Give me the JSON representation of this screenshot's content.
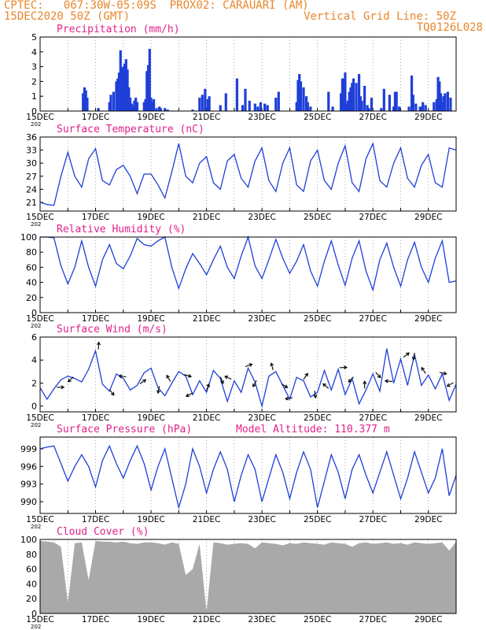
{
  "header": {
    "line1": "CPTEC:   067:30W-05:09S  PROX02: CARAUARI (AM)",
    "line2": "15DEC2020 50Z (GMT)",
    "grid_note": "Vertical Grid Line: 50Z",
    "model": "TQ0126L028"
  },
  "colors": {
    "header": "#e8862a",
    "title": "#e0218a",
    "line": "#1f3fd8",
    "bar": "#1f3fd8",
    "cloud": "#a9a9a9",
    "grid": "#888888",
    "arrow": "#000000"
  },
  "x_dates": [
    "15DEC",
    "17DEC",
    "19DEC",
    "21DEC",
    "23DEC",
    "25DEC",
    "27DEC",
    "29DEC"
  ],
  "x_sublabel": "202",
  "chart_data": [
    {
      "id": "precip",
      "type": "bar",
      "title": "Precipitation (mm/h)",
      "ylim": [
        0,
        5
      ],
      "yticks": [
        0,
        1,
        2,
        3,
        4,
        5
      ],
      "x": [
        1.55,
        1.6,
        1.65,
        1.7,
        2.1,
        2.5,
        2.55,
        2.65,
        2.75,
        2.8,
        2.85,
        2.9,
        2.95,
        3.0,
        3.05,
        3.1,
        3.15,
        3.2,
        3.25,
        3.3,
        3.35,
        3.4,
        3.45,
        3.5,
        3.75,
        3.8,
        3.85,
        3.9,
        3.95,
        4.0,
        4.05,
        4.1,
        4.2,
        4.3,
        4.35,
        4.5,
        4.6,
        5.5,
        5.75,
        5.85,
        5.95,
        6.05,
        6.1,
        6.5,
        6.7,
        7.1,
        7.3,
        7.4,
        7.55,
        7.75,
        7.85,
        7.95,
        8.1,
        8.2,
        8.5,
        8.6,
        9.25,
        9.3,
        9.35,
        9.4,
        9.5,
        9.6,
        9.65,
        9.75,
        10.4,
        10.55,
        10.85,
        10.9,
        10.95,
        11.0,
        11.05,
        11.1,
        11.15,
        11.2,
        11.25,
        11.3,
        11.4,
        11.5,
        11.55,
        11.6,
        11.7,
        11.8,
        11.85,
        11.95,
        12.3,
        12.4,
        12.6,
        12.75,
        12.8,
        12.85,
        12.95,
        13.3,
        13.4,
        13.45,
        13.55,
        13.7,
        13.75,
        13.8,
        13.9,
        14.2,
        14.3,
        14.35,
        14.4,
        14.45,
        14.5,
        14.55,
        14.6,
        14.7,
        14.8
      ],
      "values": [
        1.2,
        1.6,
        1.4,
        0.9,
        0.2,
        0.6,
        1.1,
        1.3,
        2.0,
        2.2,
        2.6,
        4.1,
        2.9,
        3.0,
        3.2,
        3.5,
        2.8,
        1.6,
        0.9,
        0.5,
        0.3,
        0.7,
        0.9,
        0.6,
        0.6,
        0.8,
        2.7,
        3.1,
        4.2,
        0.9,
        0.6,
        0.8,
        0.2,
        0.3,
        0.2,
        0.2,
        0.1,
        0.1,
        0.9,
        1.1,
        1.5,
        0.8,
        1.0,
        0.4,
        1.2,
        2.2,
        0.4,
        1.5,
        0.7,
        0.5,
        0.3,
        0.6,
        0.5,
        0.4,
        0.9,
        1.3,
        0.6,
        2.1,
        2.5,
        2.0,
        1.6,
        1.0,
        0.6,
        0.3,
        1.3,
        0.3,
        1.2,
        2.2,
        2.2,
        2.6,
        0.5,
        0.7,
        1.3,
        1.6,
        1.9,
        2.2,
        1.9,
        2.5,
        1.0,
        0.7,
        1.7,
        0.4,
        0.2,
        0.9,
        0.2,
        1.5,
        1.1,
        0.3,
        1.3,
        1.3,
        0.3,
        0.3,
        2.4,
        1.1,
        0.5,
        0.3,
        0.3,
        0.6,
        0.4,
        0.6,
        0.8,
        2.3,
        2.0,
        1.2,
        0.6,
        1.0,
        1.2,
        1.3,
        0.9
      ]
    },
    {
      "id": "temp",
      "type": "line",
      "title": "Surface Temperature (nC)",
      "ylim": [
        19,
        36
      ],
      "yticks": [
        21,
        24,
        27,
        30,
        33,
        36
      ],
      "x": [
        0,
        0.25,
        0.5,
        0.75,
        1.0,
        1.25,
        1.5,
        1.75,
        2.0,
        2.25,
        2.5,
        2.75,
        3.0,
        3.25,
        3.5,
        3.75,
        4.0,
        4.25,
        4.5,
        4.75,
        5.0,
        5.25,
        5.5,
        5.75,
        6.0,
        6.25,
        6.5,
        6.75,
        7.0,
        7.25,
        7.5,
        7.75,
        8.0,
        8.25,
        8.5,
        8.75,
        9.0,
        9.25,
        9.5,
        9.75,
        10.0,
        10.25,
        10.5,
        10.75,
        11.0,
        11.25,
        11.5,
        11.75,
        12.0,
        12.25,
        12.5,
        12.75,
        13.0,
        13.25,
        13.5,
        13.75,
        14.0,
        14.25,
        14.5,
        14.75,
        15.0
      ],
      "values": [
        21.0,
        20.5,
        20.3,
        27.0,
        32.5,
        27.0,
        24.5,
        31.0,
        33.3,
        26.0,
        25.0,
        28.5,
        29.5,
        27.0,
        23.0,
        27.5,
        27.5,
        25.0,
        22.0,
        28.0,
        34.5,
        27.0,
        25.5,
        30.0,
        31.5,
        25.5,
        24.0,
        30.5,
        32.0,
        26.5,
        24.5,
        30.5,
        33.5,
        26.0,
        23.5,
        30.0,
        33.5,
        25.0,
        23.5,
        30.5,
        33.0,
        26.0,
        24.0,
        30.0,
        34.0,
        25.5,
        23.5,
        31.0,
        34.5,
        26.0,
        24.5,
        30.0,
        33.5,
        26.5,
        24.5,
        29.5,
        32.0,
        25.5,
        24.5,
        33.5,
        33.0
      ]
    },
    {
      "id": "rh",
      "type": "line",
      "title": "Relative Humidity (%)",
      "ylim": [
        0,
        100
      ],
      "yticks": [
        0,
        20,
        40,
        60,
        80,
        100
      ],
      "x": [
        0,
        0.25,
        0.5,
        0.75,
        1.0,
        1.25,
        1.5,
        1.75,
        2.0,
        2.25,
        2.5,
        2.75,
        3.0,
        3.25,
        3.5,
        3.75,
        4.0,
        4.25,
        4.5,
        4.75,
        5.0,
        5.25,
        5.5,
        5.75,
        6.0,
        6.25,
        6.5,
        6.75,
        7.0,
        7.25,
        7.5,
        7.75,
        8.0,
        8.25,
        8.5,
        8.75,
        9.0,
        9.25,
        9.5,
        9.75,
        10.0,
        10.25,
        10.5,
        10.75,
        11.0,
        11.25,
        11.5,
        11.75,
        12.0,
        12.25,
        12.5,
        12.75,
        13.0,
        13.25,
        13.5,
        13.75,
        14.0,
        14.25,
        14.5,
        14.75,
        15.0
      ],
      "values": [
        100,
        100,
        99,
        62,
        38,
        60,
        95,
        60,
        35,
        70,
        90,
        65,
        58,
        75,
        98,
        90,
        88,
        95,
        100,
        60,
        32,
        58,
        78,
        65,
        50,
        70,
        88,
        60,
        45,
        75,
        100,
        62,
        45,
        70,
        97,
        72,
        52,
        68,
        90,
        55,
        35,
        68,
        95,
        63,
        36,
        72,
        95,
        55,
        30,
        70,
        92,
        60,
        35,
        70,
        93,
        60,
        40,
        72,
        95,
        40,
        42
      ]
    },
    {
      "id": "wind",
      "type": "line",
      "title": "Surface Wind (m/s)",
      "ylim": [
        -0.5,
        6
      ],
      "yticks": [
        0,
        2,
        4,
        6
      ],
      "x": [
        0,
        0.25,
        0.5,
        0.75,
        1.0,
        1.25,
        1.5,
        1.75,
        2.0,
        2.25,
        2.5,
        2.75,
        3.0,
        3.25,
        3.5,
        3.75,
        4.0,
        4.25,
        4.5,
        4.75,
        5.0,
        5.25,
        5.5,
        5.75,
        6.0,
        6.25,
        6.5,
        6.75,
        7.0,
        7.25,
        7.5,
        7.75,
        8.0,
        8.25,
        8.5,
        8.75,
        9.0,
        9.25,
        9.5,
        9.75,
        10.0,
        10.25,
        10.5,
        10.75,
        11.0,
        11.25,
        11.5,
        11.75,
        12.0,
        12.25,
        12.5,
        12.75,
        13.0,
        13.25,
        13.5,
        13.75,
        14.0,
        14.25,
        14.5,
        14.75,
        15.0
      ],
      "values": [
        1.6,
        0.6,
        1.5,
        2.3,
        2.6,
        2.4,
        2.1,
        3.2,
        4.8,
        1.9,
        1.3,
        2.8,
        2.4,
        1.4,
        1.8,
        2.9,
        3.3,
        1.6,
        0.9,
        2.0,
        3.0,
        2.6,
        1.0,
        2.2,
        1.2,
        3.1,
        2.4,
        0.4,
        2.2,
        1.2,
        3.3,
        2.1,
        0.0,
        2.6,
        3.0,
        1.8,
        0.6,
        2.5,
        2.2,
        0.8,
        1.2,
        3.1,
        1.4,
        3.2,
        1.0,
        2.4,
        0.2,
        1.4,
        2.8,
        1.3,
        5.0,
        2.0,
        4.1,
        1.8,
        4.5,
        1.8,
        2.7,
        1.5,
        2.8,
        0.5,
        1.9
      ],
      "arrow_days": [
        0.6,
        1.2,
        2.1,
        2.5,
        3.1,
        3.6,
        4.3,
        4.7,
        5.2,
        5.5,
        6.0,
        6.5,
        6.9,
        7.4,
        7.8,
        8.4,
        8.7,
        9.1,
        9.5,
        9.9,
        10.4,
        10.8,
        11.3,
        11.7,
        12.1,
        12.7,
        13.1,
        13.5,
        13.9,
        14.4,
        14.9
      ]
    },
    {
      "id": "press",
      "type": "line",
      "title": "Surface Pressure (hPa)",
      "annotation": "Model Altitude: 110.377  m",
      "ylim": [
        988,
        1001
      ],
      "yticks": [
        990,
        993,
        996,
        999
      ],
      "x": [
        0,
        0.25,
        0.5,
        0.75,
        1.0,
        1.25,
        1.5,
        1.75,
        2.0,
        2.25,
        2.5,
        2.75,
        3.0,
        3.25,
        3.5,
        3.75,
        4.0,
        4.25,
        4.5,
        4.75,
        5.0,
        5.25,
        5.5,
        5.75,
        6.0,
        6.25,
        6.5,
        6.75,
        7.0,
        7.25,
        7.5,
        7.75,
        8.0,
        8.25,
        8.5,
        8.75,
        9.0,
        9.25,
        9.5,
        9.75,
        10.0,
        10.25,
        10.5,
        10.75,
        11.0,
        11.25,
        11.5,
        11.75,
        12.0,
        12.25,
        12.5,
        12.75,
        13.0,
        13.25,
        13.5,
        13.75,
        14.0,
        14.25,
        14.5,
        14.75,
        15.0
      ],
      "values": [
        999.0,
        999.3,
        999.5,
        996.5,
        993.5,
        996.0,
        998.0,
        996.0,
        992.5,
        997.0,
        999.5,
        996.5,
        994.0,
        997.0,
        999.5,
        996.5,
        992.0,
        996.0,
        999.0,
        994.0,
        989.0,
        993.0,
        999.0,
        996.0,
        991.5,
        995.5,
        998.5,
        995.5,
        990.0,
        994.5,
        998.0,
        995.5,
        990.0,
        994.0,
        998.0,
        995.0,
        990.5,
        995.0,
        998.5,
        995.5,
        989.0,
        993.5,
        998.0,
        995.0,
        990.5,
        995.5,
        998.0,
        994.5,
        991.5,
        995.0,
        998.5,
        994.5,
        990.5,
        994.0,
        998.5,
        995.0,
        991.5,
        994.0,
        999.0,
        991.0,
        994.5
      ]
    },
    {
      "id": "cloud",
      "type": "area",
      "title": "Cloud Cover (%)",
      "ylim": [
        0,
        100
      ],
      "yticks": [
        0,
        20,
        40,
        60,
        80,
        100
      ],
      "x": [
        0,
        0.25,
        0.5,
        0.75,
        1.0,
        1.25,
        1.5,
        1.75,
        2.0,
        2.25,
        2.5,
        2.75,
        3.0,
        3.25,
        3.5,
        3.75,
        4.0,
        4.25,
        4.5,
        4.75,
        5.0,
        5.25,
        5.5,
        5.75,
        6.0,
        6.25,
        6.5,
        6.75,
        7.0,
        7.25,
        7.5,
        7.75,
        8.0,
        8.25,
        8.5,
        8.75,
        9.0,
        9.25,
        9.5,
        9.75,
        10.0,
        10.25,
        10.5,
        10.75,
        11.0,
        11.25,
        11.5,
        11.75,
        12.0,
        12.25,
        12.5,
        12.75,
        13.0,
        13.25,
        13.5,
        13.75,
        14.0,
        14.25,
        14.5,
        14.75,
        15.0
      ],
      "values": [
        98,
        97,
        96,
        90,
        15,
        95,
        96,
        45,
        98,
        97,
        97,
        96,
        97,
        95,
        94,
        96,
        96,
        95,
        93,
        96,
        94,
        52,
        60,
        94,
        2,
        96,
        95,
        93,
        94,
        95,
        94,
        88,
        96,
        95,
        94,
        92,
        95,
        94,
        96,
        95,
        94,
        93,
        96,
        95,
        94,
        90,
        95,
        96,
        94,
        95,
        96,
        94,
        95,
        93,
        96,
        95,
        94,
        95,
        96,
        85,
        97
      ]
    }
  ]
}
